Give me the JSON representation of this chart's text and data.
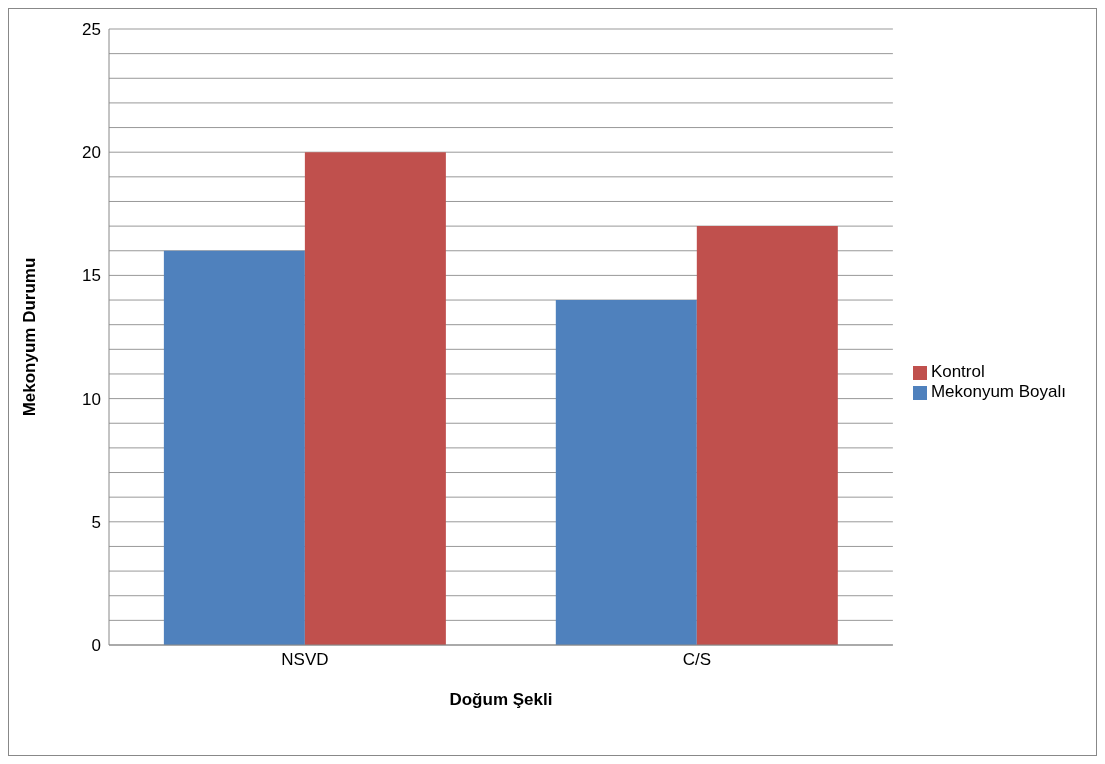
{
  "chart_data": {
    "type": "bar",
    "xlabel": "Doğum Şekli",
    "ylabel": "Mekonyum Durumu",
    "categories": [
      "NSVD",
      "C/S"
    ],
    "series": [
      {
        "name": "Mekonyum Boyalı",
        "color": "#4f81bd",
        "values": [
          16,
          14
        ]
      },
      {
        "name": "Kontrol",
        "color": "#c0504d",
        "values": [
          20,
          17
        ]
      }
    ],
    "ylim": [
      0,
      25
    ],
    "yticks": [
      0,
      {
        "value": 1,
        "label": null
      },
      {
        "value": 2,
        "label": null
      },
      {
        "value": 3,
        "label": null
      },
      {
        "value": 4,
        "label": null
      },
      5,
      {
        "value": 6,
        "label": null
      },
      {
        "value": 7,
        "label": null
      },
      {
        "value": 8,
        "label": null
      },
      {
        "value": 9,
        "label": null
      },
      10,
      {
        "value": 11,
        "label": null
      },
      {
        "value": 12,
        "label": null
      },
      {
        "value": 13,
        "label": null
      },
      {
        "value": 14,
        "label": null
      },
      15,
      {
        "value": 16,
        "label": null
      },
      {
        "value": 17,
        "label": null
      },
      {
        "value": 18,
        "label": null
      },
      {
        "value": 19,
        "label": null
      },
      20,
      {
        "value": 21,
        "label": null
      },
      {
        "value": 22,
        "label": null
      },
      {
        "value": 23,
        "label": null
      },
      {
        "value": 24,
        "label": null
      },
      25
    ],
    "grid": "y",
    "legend": "right"
  }
}
